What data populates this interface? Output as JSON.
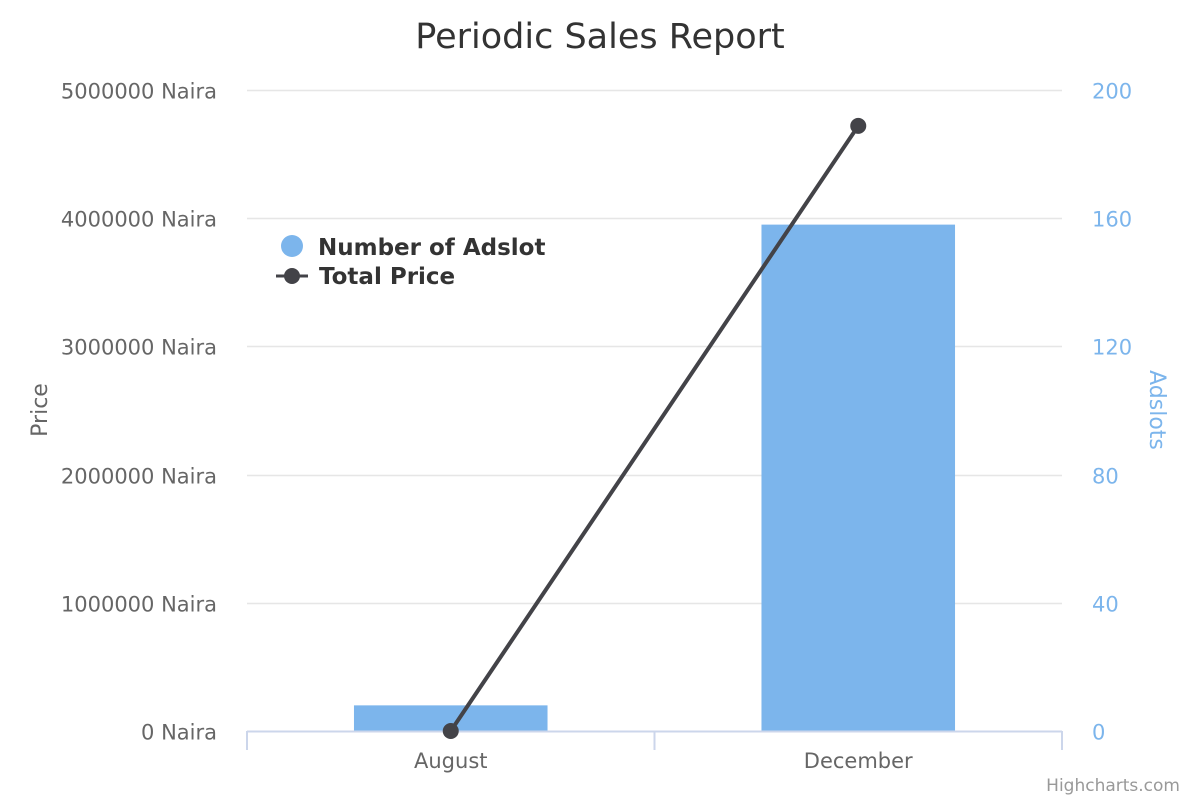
{
  "chart_data": {
    "type": "bar+line",
    "title": "Periodic Sales Report",
    "categories": [
      "August",
      "December"
    ],
    "y_left": {
      "label": "Price",
      "range": [
        0,
        5000000
      ],
      "ticks": [
        "0 Naira",
        "1000000 Naira",
        "2000000 Naira",
        "3000000 Naira",
        "4000000 Naira",
        "5000000 Naira"
      ],
      "tick_values": [
        0,
        1000000,
        2000000,
        3000000,
        4000000,
        5000000
      ]
    },
    "y_right": {
      "label": "Adslots",
      "range": [
        0,
        200
      ],
      "ticks": [
        "0",
        "40",
        "80",
        "120",
        "160",
        "200"
      ],
      "tick_values": [
        0,
        40,
        80,
        120,
        160,
        200
      ]
    },
    "grid": true,
    "legend": {
      "placement": "top-left-inside"
    },
    "series": [
      {
        "name": "Number of Adslot",
        "type": "bar",
        "axis": "right",
        "color": "#7cb5ec",
        "values": [
          8,
          158
        ]
      },
      {
        "name": "Total Price",
        "type": "line",
        "axis": "left",
        "color": "#434348",
        "values": [
          0,
          4720000
        ]
      }
    ],
    "credits": "Highcharts.com"
  }
}
